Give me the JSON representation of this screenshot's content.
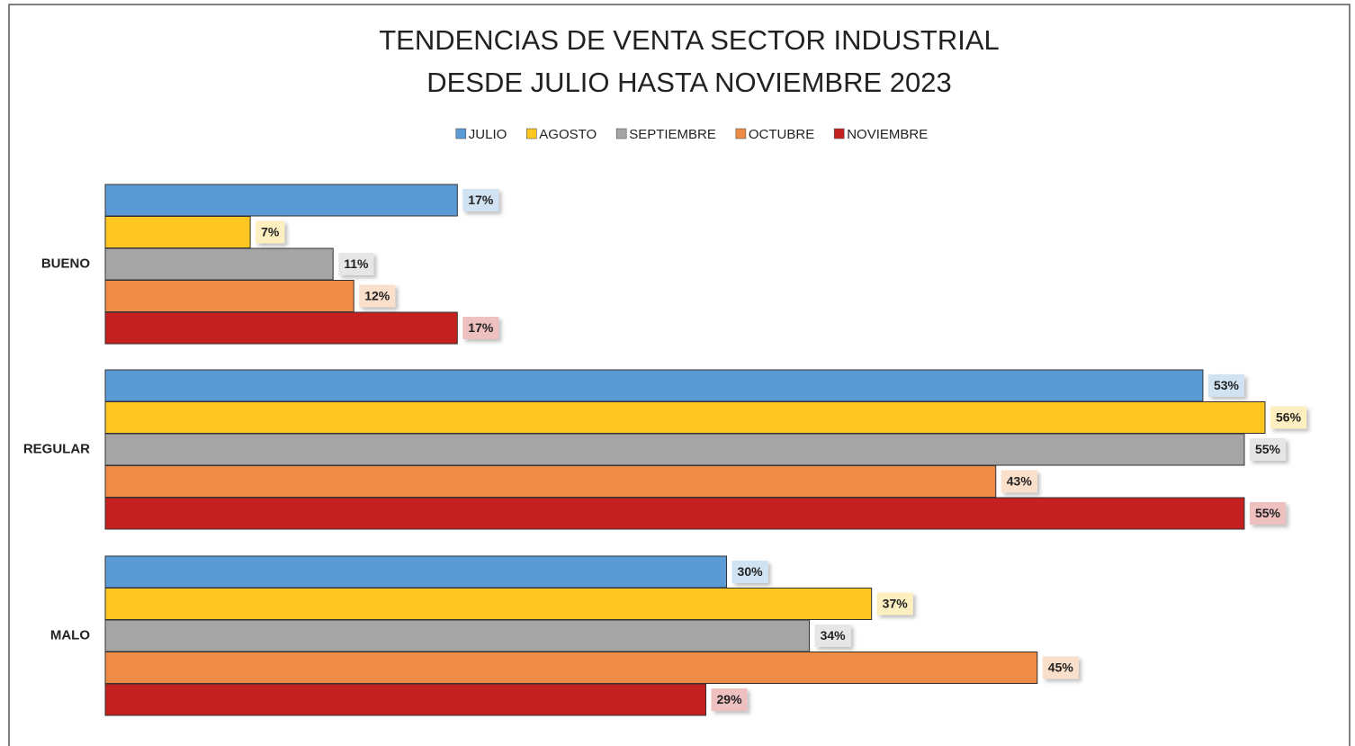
{
  "chart_data": {
    "type": "bar",
    "orientation": "horizontal",
    "title": "TENDENCIAS DE VENTA SECTOR INDUSTRIAL",
    "subtitle": "DESDE JULIO HASTA NOVIEMBRE 2023",
    "categories": [
      "BUENO",
      "REGULAR",
      "MALO"
    ],
    "series": [
      {
        "name": "JULIO",
        "color": "#5b9bd5",
        "values": [
          17,
          53,
          30
        ],
        "value_labels": [
          "17%",
          "53%",
          "30%"
        ]
      },
      {
        "name": "AGOSTO",
        "color": "#fdc621",
        "values": [
          7,
          56,
          37
        ],
        "value_labels": [
          "7%",
          "56%",
          "37%"
        ]
      },
      {
        "name": "SEPTIEMBRE",
        "color": "#a5a5a5",
        "values": [
          11,
          55,
          34
        ],
        "value_labels": [
          "11%",
          "55%",
          "34%"
        ]
      },
      {
        "name": "OCTUBRE",
        "color": "#ee8c47",
        "values": [
          12,
          43,
          45
        ],
        "value_labels": [
          "12%",
          "43%",
          "45%"
        ]
      },
      {
        "name": "NOVIEMBRE",
        "color": "#c4201f",
        "values": [
          17,
          55,
          29
        ],
        "value_labels": [
          "17%",
          "55%",
          "29%"
        ]
      }
    ],
    "legend": "top"
  }
}
